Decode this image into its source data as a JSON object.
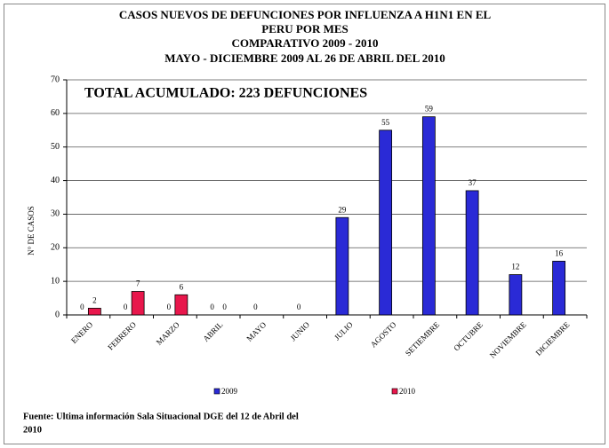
{
  "chart_data": {
    "type": "bar",
    "title": [
      "CASOS NUEVOS DE DEFUNCIONES POR INFLUENZA A H1N1 EN EL",
      "PERU POR MES",
      "COMPARATIVO 2009 - 2010",
      "MAYO - DICIEMBRE 2009 AL 26 DE ABRIL DEL 2010"
    ],
    "annotation": "TOTAL  ACUMULADO: 223 DEFUNCIONES",
    "y_label": "N° DE CASOS",
    "footnote": [
      "Fuente: Ultima información Sala Situacional DGE del 12 de Abril del",
      "2010"
    ],
    "categories": [
      "ENERO",
      "FEBRERO",
      "MARZO",
      "ABRIL",
      "MAYO",
      "JUNIO",
      "JULIO",
      "AGOSTO",
      "SETIEMBRE",
      "OCTUBRE",
      "NOVIEMBRE",
      "DICIEMBRE"
    ],
    "series": [
      {
        "name": "2009",
        "color": "#2a2ad6",
        "values": [
          0,
          0,
          0,
          0,
          0,
          0,
          29,
          55,
          59,
          37,
          12,
          16
        ]
      },
      {
        "name": "2010",
        "color": "#e8174c",
        "values": [
          2,
          7,
          6,
          0,
          null,
          null,
          null,
          null,
          null,
          null,
          null,
          null
        ]
      }
    ],
    "ylim": [
      0,
      70
    ],
    "yticks": [
      0,
      10,
      20,
      30,
      40,
      50,
      60,
      70
    ],
    "grid": true,
    "legend": "bottom"
  }
}
